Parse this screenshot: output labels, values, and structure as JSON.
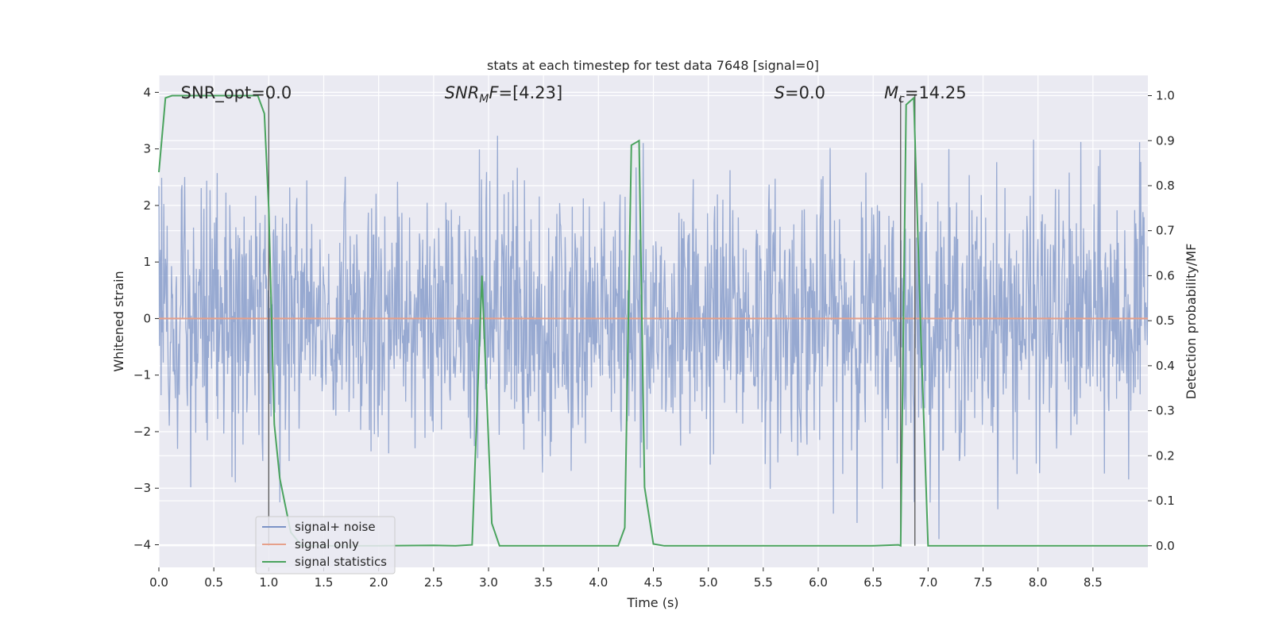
{
  "chart_data": {
    "type": "line",
    "title": "stats at each timestep for test data 7648 [signal=0]",
    "xlabel": "Time (s)",
    "ylabel_left": "Whitened strain",
    "ylabel_right": "Detection probability/MF",
    "xlim": [
      0.0,
      9.0
    ],
    "ylim_left": [
      -4.4,
      4.3
    ],
    "ylim_right": [
      -0.048,
      1.045
    ],
    "x_ticks": [
      0.0,
      0.5,
      1.0,
      1.5,
      2.0,
      2.5,
      3.0,
      3.5,
      4.0,
      4.5,
      5.0,
      5.5,
      6.0,
      6.5,
      7.0,
      7.5,
      8.0,
      8.5
    ],
    "x_tick_labels": [
      "0.0",
      "0.5",
      "1.0",
      "1.5",
      "2.0",
      "2.5",
      "3.0",
      "3.5",
      "4.0",
      "4.5",
      "5.0",
      "5.5",
      "6.0",
      "6.5",
      "7.0",
      "7.5",
      "8.0",
      "8.5"
    ],
    "y_left_ticks": [
      -4,
      -3,
      -2,
      -1,
      0,
      1,
      2,
      3,
      4
    ],
    "y_left_tick_labels": [
      "−4",
      "−3",
      "−2",
      "−1",
      "0",
      "1",
      "2",
      "3",
      "4"
    ],
    "y_right_ticks": [
      0.0,
      0.1,
      0.2,
      0.3,
      0.4,
      0.5,
      0.6,
      0.7,
      0.8,
      0.9,
      1.0
    ],
    "y_right_tick_labels": [
      "0.0",
      "0.1",
      "0.2",
      "0.3",
      "0.4",
      "0.5",
      "0.6",
      "0.7",
      "0.8",
      "0.9",
      "1.0"
    ],
    "grid": true,
    "legend_placement": "lower-left",
    "annotations": {
      "snr_opt": {
        "prefix": "SNR_opt=",
        "value": "0.0",
        "x": 0.2
      },
      "snr_mf": {
        "base": "SNR",
        "sub": "M",
        "suffix": "F=",
        "value": "[4.23]",
        "x": 2.6
      },
      "s": {
        "base": "S",
        "suffix": "=",
        "value": "0.0",
        "x": 5.6
      },
      "mc": {
        "base": "M",
        "sub": "c",
        "suffix": "=",
        "value": "14.25",
        "x": 6.6
      }
    },
    "vertical_lines_x": [
      1.0,
      6.75,
      6.88
    ],
    "series": [
      {
        "name": "signal+ noise",
        "axis": "left",
        "color": "#7b93c6",
        "description": "whitened strain noise, amplitude roughly within ±2.5 with peaks near ±4",
        "noise_seed": 7648,
        "sample_count": 1800
      },
      {
        "name": "signal only",
        "axis": "left",
        "color": "#e6a08a",
        "x": [
          0.0,
          9.0
        ],
        "y": [
          0.0,
          0.0
        ]
      },
      {
        "name": "signal statistics",
        "axis": "right",
        "color": "#4aa35e",
        "x": [
          0.0,
          0.06,
          0.12,
          0.2,
          0.9,
          0.96,
          1.0,
          1.05,
          1.1,
          1.2,
          1.3,
          1.4,
          1.5,
          2.0,
          2.5,
          2.7,
          2.85,
          2.94,
          3.03,
          3.1,
          3.5,
          4.0,
          4.18,
          4.24,
          4.3,
          4.37,
          4.42,
          4.5,
          4.6,
          5.0,
          6.0,
          6.5,
          6.73,
          6.75,
          6.8,
          6.87,
          6.93,
          7.0,
          7.5,
          8.0,
          8.5,
          9.0
        ],
        "y": [
          0.83,
          0.995,
          1.0,
          1.0,
          1.0,
          0.96,
          0.75,
          0.27,
          0.15,
          0.03,
          0.0,
          0.0,
          0.0,
          0.0,
          0.001,
          0.0,
          0.002,
          0.6,
          0.05,
          0.0,
          0.0,
          0.0,
          0.0,
          0.04,
          0.89,
          0.9,
          0.13,
          0.004,
          0.0,
          0.0,
          0.0,
          0.0,
          0.002,
          0.0,
          0.98,
          0.995,
          0.5,
          0.0,
          0.0,
          0.0,
          0.0,
          0.0
        ]
      }
    ]
  }
}
